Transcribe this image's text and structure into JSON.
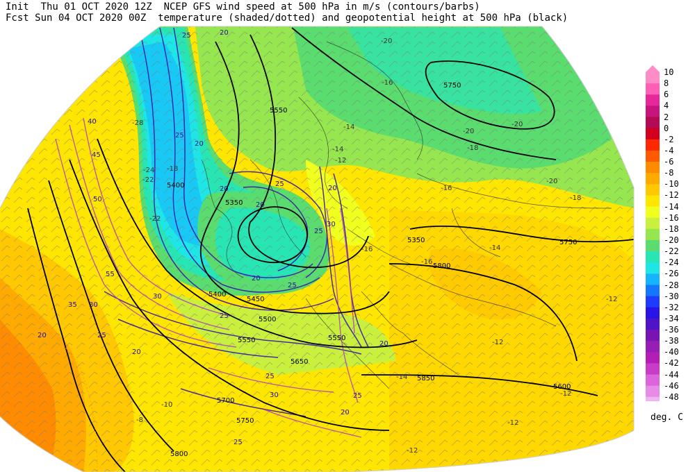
{
  "header": {
    "line1": "Init  Thu 01 OCT 2020 12Z  NCEP GFS wind speed at 500 hPa in m/s (contours/barbs)",
    "line2": "Fcst Sun 04 OCT 2020 00Z  temperature (shaded/dotted) and geopotential height at 500 hPa (black)"
  },
  "colorbar": {
    "units": "deg. C",
    "levels": [
      {
        "label": "10",
        "color": "#ff8cc6"
      },
      {
        "label": "8",
        "color": "#ff5fb4"
      },
      {
        "label": "6",
        "color": "#e6289a"
      },
      {
        "label": "4",
        "color": "#c8147d"
      },
      {
        "label": "2",
        "color": "#b40a55"
      },
      {
        "label": "0",
        "color": "#d2001e"
      },
      {
        "label": "-2",
        "color": "#ff2800"
      },
      {
        "label": "-4",
        "color": "#ff5a00"
      },
      {
        "label": "-6",
        "color": "#ff8c00"
      },
      {
        "label": "-8",
        "color": "#ffaa00"
      },
      {
        "label": "-10",
        "color": "#ffc800"
      },
      {
        "label": "-12",
        "color": "#ffe600"
      },
      {
        "label": "-14",
        "color": "#f0ff1e"
      },
      {
        "label": "-16",
        "color": "#c8f03c"
      },
      {
        "label": "-18",
        "color": "#96e650"
      },
      {
        "label": "-20",
        "color": "#5adc6e"
      },
      {
        "label": "-22",
        "color": "#28e6b4"
      },
      {
        "label": "-24",
        "color": "#1ee6e6"
      },
      {
        "label": "-26",
        "color": "#14b4ff"
      },
      {
        "label": "-28",
        "color": "#1478ff"
      },
      {
        "label": "-30",
        "color": "#1e3cff"
      },
      {
        "label": "-32",
        "color": "#2814e6"
      },
      {
        "label": "-34",
        "color": "#5014c8"
      },
      {
        "label": "-36",
        "color": "#7814b4"
      },
      {
        "label": "-38",
        "color": "#961eb4"
      },
      {
        "label": "-40",
        "color": "#b41eb4"
      },
      {
        "label": "-42",
        "color": "#c83cc8"
      },
      {
        "label": "-44",
        "color": "#dc64dc"
      },
      {
        "label": "-46",
        "color": "#e68ce6"
      },
      {
        "label": "-48",
        "color": "#f0b4f0"
      }
    ]
  },
  "map": {
    "height_labels": [
      "5750",
      "5550",
      "5400",
      "5350",
      "5400",
      "5450",
      "5500",
      "5550",
      "5650",
      "5700",
      "5750",
      "5800",
      "5850",
      "5750",
      "5800",
      "5550",
      "5350",
      "5600"
    ],
    "wind_labels": [
      "25",
      "20",
      "20",
      "25",
      "20",
      "25",
      "20",
      "20",
      "25",
      "30",
      "25",
      "20",
      "40",
      "45",
      "50",
      "55",
      "35",
      "30",
      "25",
      "20",
      "20",
      "25",
      "30",
      "25",
      "30",
      "25",
      "20",
      "20",
      "25"
    ],
    "temp_labels": [
      "-20",
      "-18",
      "-20",
      "-16",
      "-14",
      "-12",
      "-14",
      "-16",
      "-20",
      "-22",
      "-24",
      "-28",
      "-22",
      "-16",
      "-18",
      "-20",
      "-12",
      "-14",
      "-18",
      "-12",
      "-12",
      "-10",
      "-8",
      "-12",
      "-14",
      "-16",
      "-12"
    ]
  }
}
